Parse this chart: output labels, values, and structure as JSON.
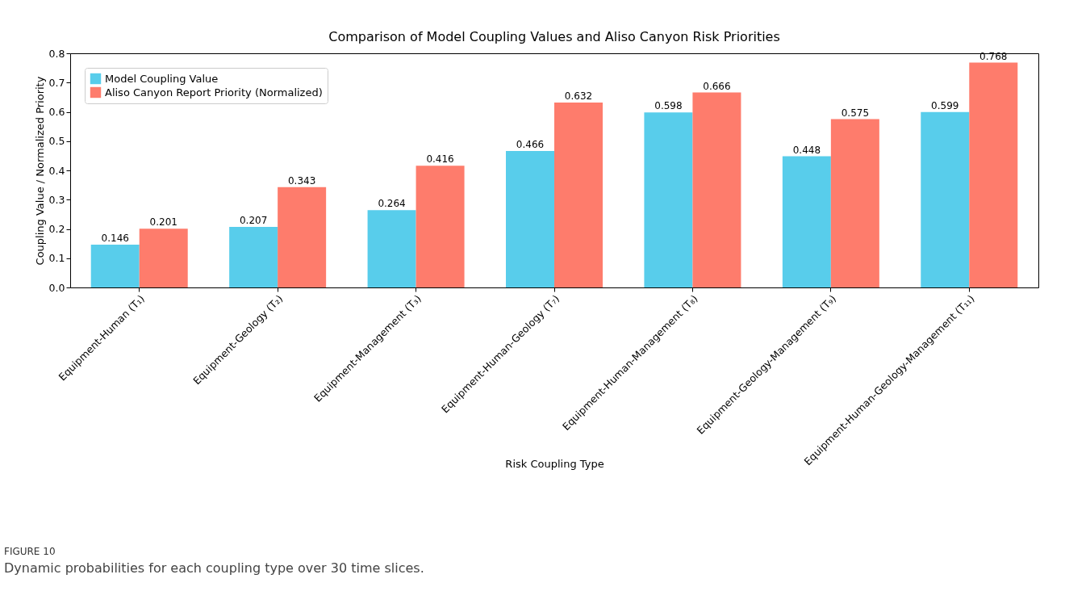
{
  "chart_data": {
    "type": "bar",
    "title": "Comparison of Model Coupling Values and Aliso Canyon Risk Priorities",
    "xlabel": "Risk Coupling Type",
    "ylabel": "Coupling Value / Normalized Priority",
    "categories": [
      "Equipment-Human (T₁)",
      "Equipment-Geology (T₂)",
      "Equipment-Management (T₃)",
      "Equipment-Human-Geology (T₇)",
      "Equipment-Human-Management (T₈)",
      "Equipment-Geology-Management (T₉)",
      "Equipment-Human-Geology-Management (T₁₁)"
    ],
    "series": [
      {
        "name": "Model Coupling Value",
        "color": "#58cdeb",
        "values": [
          0.146,
          0.207,
          0.264,
          0.466,
          0.598,
          0.448,
          0.599
        ]
      },
      {
        "name": "Aliso Canyon Report Priority (Normalized)",
        "color": "#fe7c6c",
        "values": [
          0.201,
          0.343,
          0.416,
          0.632,
          0.666,
          0.575,
          0.768
        ]
      }
    ],
    "ylim": [
      0,
      0.8
    ],
    "yticks": [
      {
        "value": 0,
        "label": "0.0"
      },
      0.1,
      0.2,
      0.3,
      0.4,
      0.5,
      0.6,
      0.7,
      0.8
    ],
    "data_labels": true,
    "legend": "top left",
    "grid": false,
    "annotations": [
      "FIGURE 10",
      "Dynamic probabilities for each coupling type over 30 time slices."
    ]
  }
}
